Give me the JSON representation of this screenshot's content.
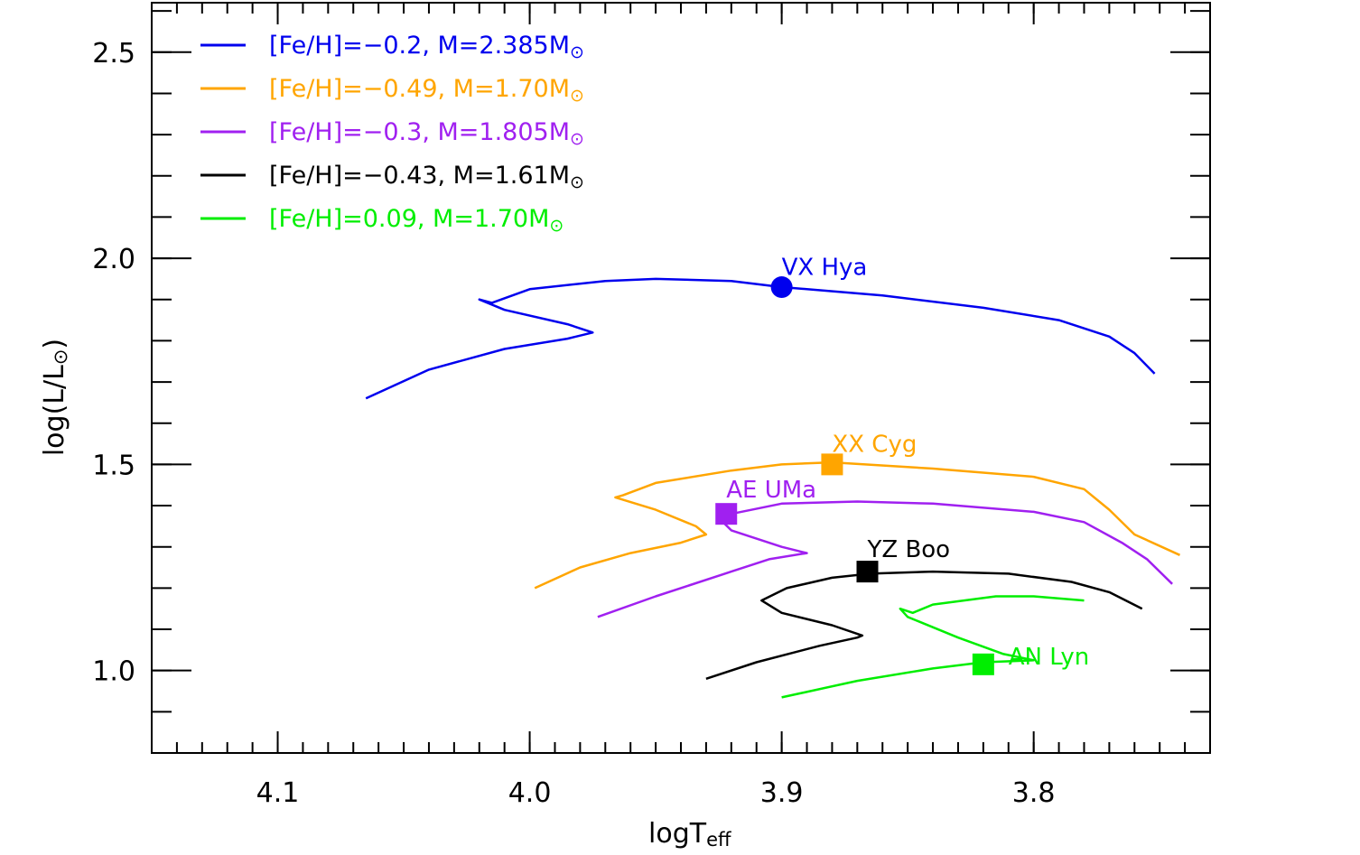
{
  "chart_data": {
    "type": "line",
    "title": "",
    "xlabel": "logT",
    "xlabel_sub": "eff",
    "ylabel": "log(L/L",
    "ylabel_sym": "⊙",
    "ylabel_end": ")",
    "xlim": [
      4.15,
      3.73
    ],
    "ylim": [
      0.8,
      2.62
    ],
    "x_reversed": true,
    "x_ticks": [
      {
        "value": 4.1,
        "label": "4.1"
      },
      {
        "value": 4.0,
        "label": "4.0"
      },
      {
        "value": 3.9,
        "label": "3.9"
      },
      {
        "value": 3.8,
        "label": "3.8"
      }
    ],
    "y_ticks": [
      {
        "value": 1.0,
        "label": "1.0"
      },
      {
        "value": 1.5,
        "label": "1.5"
      },
      {
        "value": 2.0,
        "label": "2.0"
      },
      {
        "value": 2.5,
        "label": "2.5"
      }
    ],
    "x_minor_step": 0.01,
    "y_minor_step": 0.1,
    "grid": false,
    "legend_position": "top-left",
    "series": [
      {
        "name": "[Fe/H]=−0.2, M=2.385M",
        "symbol": "⊙",
        "color": "#0000ee",
        "points": [
          [
            4.065,
            1.66
          ],
          [
            4.04,
            1.73
          ],
          [
            4.01,
            1.78
          ],
          [
            3.985,
            1.805
          ],
          [
            3.975,
            1.82
          ],
          [
            3.985,
            1.84
          ],
          [
            4.01,
            1.875
          ],
          [
            4.02,
            1.9
          ],
          [
            4.015,
            1.892
          ],
          [
            4.0,
            1.925
          ],
          [
            3.97,
            1.945
          ],
          [
            3.95,
            1.95
          ],
          [
            3.92,
            1.945
          ],
          [
            3.9,
            1.93
          ],
          [
            3.86,
            1.91
          ],
          [
            3.82,
            1.88
          ],
          [
            3.79,
            1.85
          ],
          [
            3.77,
            1.81
          ],
          [
            3.76,
            1.77
          ],
          [
            3.752,
            1.72
          ]
        ]
      },
      {
        "name": "[Fe/H]=−0.49, M=1.70M",
        "symbol": "⊙",
        "color": "#ffa500",
        "points": [
          [
            3.998,
            1.2
          ],
          [
            3.98,
            1.25
          ],
          [
            3.96,
            1.285
          ],
          [
            3.94,
            1.31
          ],
          [
            3.93,
            1.33
          ],
          [
            3.934,
            1.35
          ],
          [
            3.95,
            1.39
          ],
          [
            3.966,
            1.42
          ],
          [
            3.963,
            1.425
          ],
          [
            3.95,
            1.455
          ],
          [
            3.92,
            1.485
          ],
          [
            3.9,
            1.5
          ],
          [
            3.88,
            1.505
          ],
          [
            3.84,
            1.49
          ],
          [
            3.8,
            1.47
          ],
          [
            3.78,
            1.44
          ],
          [
            3.77,
            1.39
          ],
          [
            3.76,
            1.33
          ],
          [
            3.742,
            1.28
          ]
        ]
      },
      {
        "name": "[Fe/H]=−0.3, M=1.805M",
        "symbol": "⊙",
        "color": "#a020f0",
        "points": [
          [
            3.973,
            1.13
          ],
          [
            3.95,
            1.18
          ],
          [
            3.92,
            1.24
          ],
          [
            3.905,
            1.27
          ],
          [
            3.89,
            1.285
          ],
          [
            3.9,
            1.3
          ],
          [
            3.92,
            1.34
          ],
          [
            3.925,
            1.37
          ],
          [
            3.92,
            1.38
          ],
          [
            3.9,
            1.405
          ],
          [
            3.87,
            1.41
          ],
          [
            3.84,
            1.405
          ],
          [
            3.8,
            1.385
          ],
          [
            3.78,
            1.36
          ],
          [
            3.765,
            1.31
          ],
          [
            3.755,
            1.27
          ],
          [
            3.745,
            1.21
          ]
        ]
      },
      {
        "name": "[Fe/H]=−0.43, M=1.61M",
        "symbol": "⊙",
        "color": "#000000",
        "points": [
          [
            3.93,
            0.98
          ],
          [
            3.91,
            1.02
          ],
          [
            3.885,
            1.06
          ],
          [
            3.87,
            1.08
          ],
          [
            3.868,
            1.085
          ],
          [
            3.88,
            1.11
          ],
          [
            3.9,
            1.14
          ],
          [
            3.908,
            1.17
          ],
          [
            3.898,
            1.2
          ],
          [
            3.88,
            1.225
          ],
          [
            3.865,
            1.235
          ],
          [
            3.84,
            1.24
          ],
          [
            3.81,
            1.235
          ],
          [
            3.785,
            1.215
          ],
          [
            3.77,
            1.19
          ],
          [
            3.757,
            1.15
          ]
        ]
      },
      {
        "name": "[Fe/H]=0.09, M=1.70M",
        "symbol": "⊙",
        "color": "#00ee00",
        "points": [
          [
            3.9,
            0.935
          ],
          [
            3.87,
            0.975
          ],
          [
            3.84,
            1.005
          ],
          [
            3.82,
            1.02
          ],
          [
            3.8,
            1.025
          ],
          [
            3.812,
            1.04
          ],
          [
            3.83,
            1.08
          ],
          [
            3.85,
            1.13
          ],
          [
            3.853,
            1.15
          ],
          [
            3.848,
            1.14
          ],
          [
            3.84,
            1.16
          ],
          [
            3.815,
            1.18
          ],
          [
            3.8,
            1.18
          ],
          [
            3.78,
            1.17
          ]
        ]
      }
    ],
    "stars": [
      {
        "name": "VX Hya",
        "x": 3.9,
        "y": 1.93,
        "marker": "circle",
        "color": "#0000ee",
        "label_x": 3.9,
        "label_y": 1.96
      },
      {
        "name": "XX Cyg",
        "x": 3.88,
        "y": 1.5,
        "marker": "square",
        "color": "#ffa500",
        "label_x": 3.88,
        "label_y": 1.53
      },
      {
        "name": "AE UMa",
        "x": 3.922,
        "y": 1.38,
        "marker": "square",
        "color": "#a020f0",
        "label_x": 3.922,
        "label_y": 1.42
      },
      {
        "name": "YZ Boo",
        "x": 3.866,
        "y": 1.24,
        "marker": "square",
        "color": "#000000",
        "label_x": 3.866,
        "label_y": 1.275
      },
      {
        "name": "AN Lyn",
        "x": 3.82,
        "y": 1.015,
        "marker": "square",
        "color": "#00ee00",
        "label_x": 3.81,
        "label_y": 1.015
      }
    ]
  }
}
